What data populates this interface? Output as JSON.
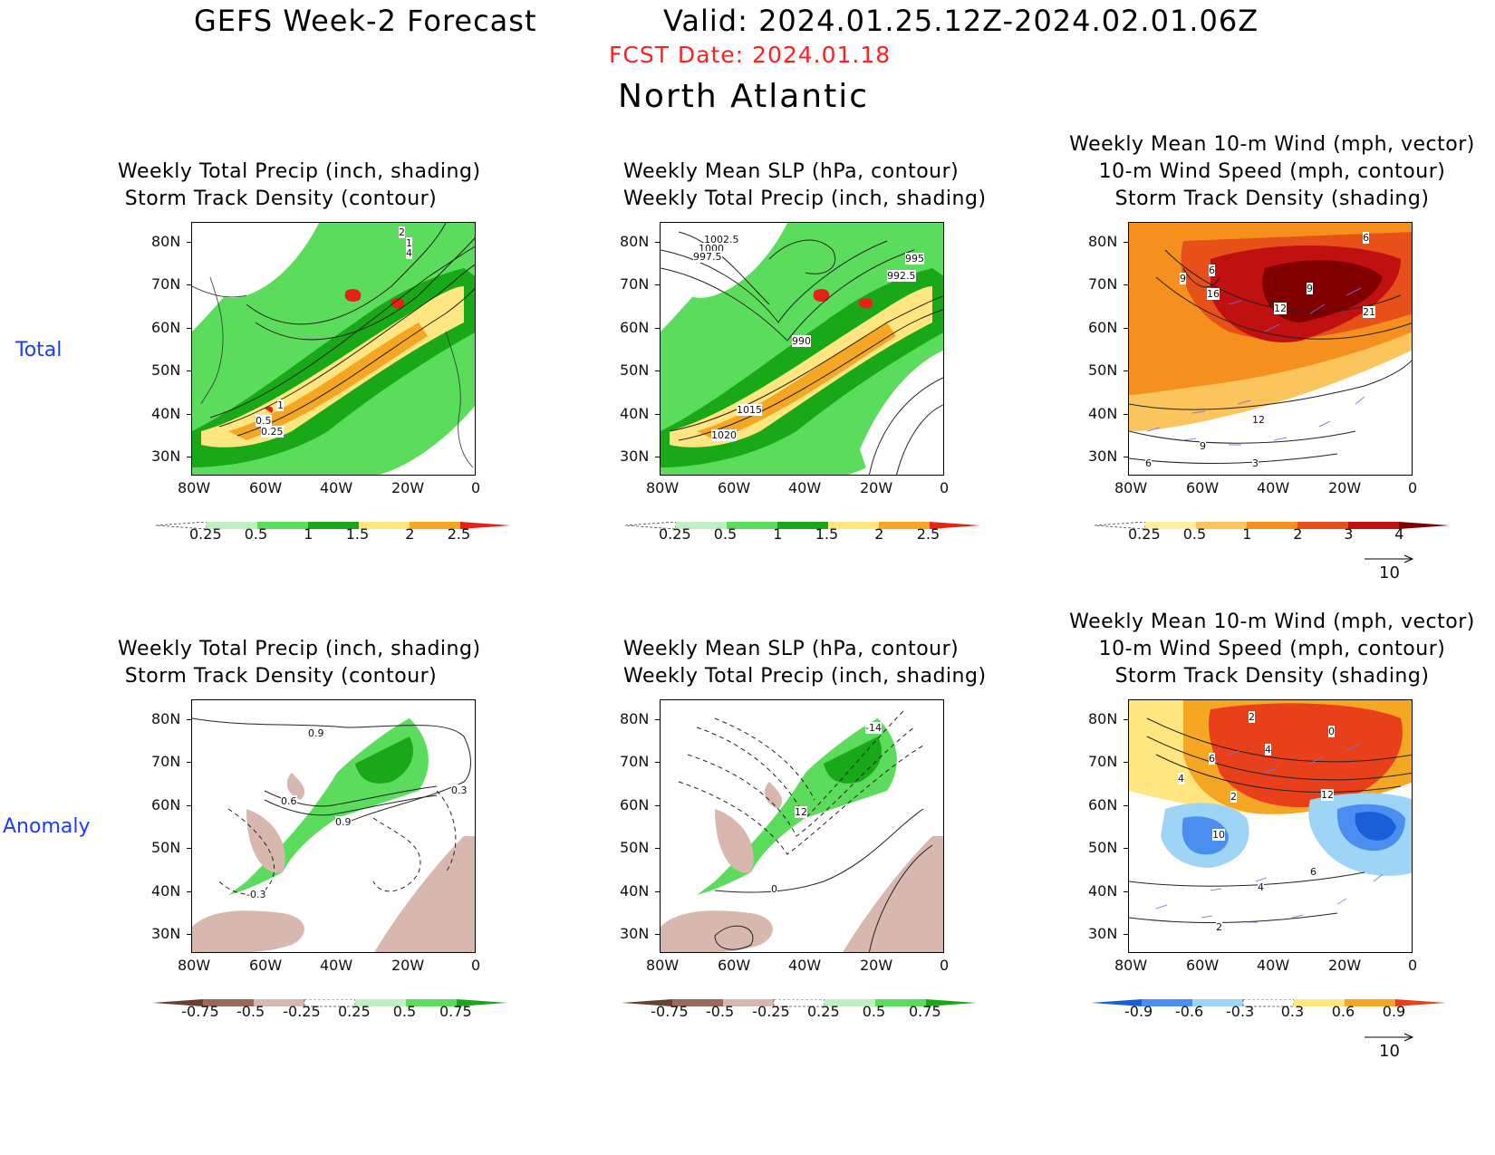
{
  "header": {
    "title": "GEFS Week-2 Forecast",
    "valid": "Valid: 2024.01.25.12Z-2024.02.01.06Z",
    "fcst_date": "FCST Date: 2024.01.18",
    "region": "North Atlantic"
  },
  "row_labels": {
    "total": "Total",
    "anomaly": "Anomaly"
  },
  "axes": {
    "lat_ticks": [
      "80N",
      "70N",
      "60N",
      "50N",
      "40N",
      "30N"
    ],
    "lon_ticks": [
      "80W",
      "60W",
      "40W",
      "20W",
      "0"
    ]
  },
  "panels": {
    "p1": {
      "title1": "Weekly Total Precip (inch, shading)",
      "title2": "Storm Track Density (contour)",
      "labels": [
        "2",
        "1",
        "4",
        "1",
        "0.5",
        "0.25"
      ]
    },
    "p2": {
      "title1": "Weekly Mean SLP (hPa, contour)",
      "title2": "Weekly Total Precip (inch, shading)",
      "labels": [
        "1002.5",
        "1000",
        "997.5",
        "995",
        "992.5",
        "990",
        "1015",
        "1020"
      ]
    },
    "p3": {
      "title1": "Weekly Mean 10-m Wind (mph, vector)",
      "title2": "10-m Wind Speed (mph, contour)",
      "title3": "Storm Track Density (shading)",
      "labels": [
        "6",
        "9",
        "6",
        "16",
        "9",
        "12",
        "21",
        "12",
        "9",
        "6",
        "3"
      ]
    },
    "p4": {
      "title1": "Weekly Total Precip (inch, shading)",
      "title2": "Storm Track Density (contour)",
      "labels": [
        "0.9",
        "0.6",
        "0.9",
        "0.3",
        "-0.3"
      ]
    },
    "p5": {
      "title1": "Weekly Mean SLP (hPa, contour)",
      "title2": "Weekly Total Precip (inch, shading)",
      "labels": [
        "-14",
        "12",
        "0"
      ]
    },
    "p6": {
      "title1": "Weekly Mean 10-m Wind (mph, vector)",
      "title2": "10-m Wind Speed (mph, contour)",
      "title3": "Storm Track Density (shading)",
      "labels": [
        "2",
        "0",
        "6",
        "4",
        "4",
        "2",
        "12",
        "10",
        "6",
        "4",
        "2"
      ]
    }
  },
  "colorbars": {
    "precip_total": {
      "labels": [
        "0.25",
        "0.5",
        "1",
        "1.5",
        "2",
        "2.5"
      ],
      "colors": [
        "#ffffff",
        "#bff0bf",
        "#5cdc5c",
        "#18a818",
        "#ffe680",
        "#f5a623",
        "#e8201a"
      ]
    },
    "track_total": {
      "labels": [
        "0.25",
        "0.5",
        "1",
        "2",
        "3",
        "4"
      ],
      "colors": [
        "#ffffff",
        "#fff0a0",
        "#fbc45c",
        "#f5901e",
        "#e8501a",
        "#c01010",
        "#800000"
      ]
    },
    "precip_anom": {
      "labels": [
        "-0.75",
        "-0.5",
        "-0.25",
        "0.25",
        "0.5",
        "0.75"
      ],
      "colors": [
        "#6b4030",
        "#9a6a58",
        "#d8b8ae",
        "#ffffff",
        "#bff0bf",
        "#5cdc5c",
        "#18a818"
      ]
    },
    "track_anom": {
      "labels": [
        "-0.9",
        "-0.6",
        "-0.3",
        "0.3",
        "0.6",
        "0.9"
      ],
      "colors": [
        "#1a5fd8",
        "#4a8ef0",
        "#9ed4f5",
        "#ffffff",
        "#ffe680",
        "#f5a623",
        "#e8401a"
      ]
    }
  },
  "wind_scale": "10"
}
